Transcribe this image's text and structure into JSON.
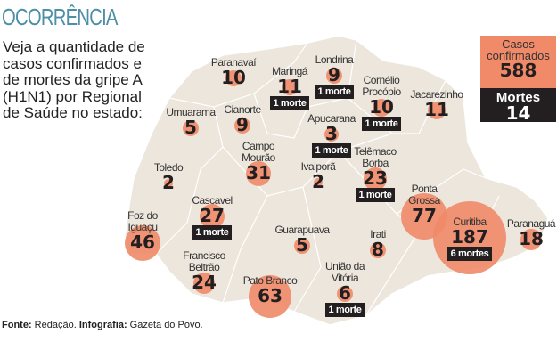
{
  "title": "OCORRÊNCIA",
  "intro": "Veja a quantidade de casos confirmados e de mortes da gripe A (H1N1) por Regional de Saúde no estado:",
  "summary": {
    "cases_label": "Casos confirmados",
    "cases": "588",
    "deaths_label": "Mortes",
    "deaths": "14"
  },
  "regions": [
    {
      "name": "Paranavaí",
      "cases": "10"
    },
    {
      "name": "Maringá",
      "cases": "11",
      "deaths": "1 morte"
    },
    {
      "name": "Londrina",
      "cases": "9",
      "deaths": "1 morte"
    },
    {
      "name": "Cornélio Procópio",
      "cases": "10",
      "deaths": "1 morte"
    },
    {
      "name": "Jacarezinho",
      "cases": "11"
    },
    {
      "name": "Umuarama",
      "cases": "5"
    },
    {
      "name": "Cianorte",
      "cases": "9"
    },
    {
      "name": "Apucarana",
      "cases": "3",
      "deaths": "1 morte"
    },
    {
      "name": "Campo Mourão",
      "cases": "31"
    },
    {
      "name": "Ivaiporã",
      "cases": "2"
    },
    {
      "name": "Telêmaco Borba",
      "cases": "23",
      "deaths": "1 morte"
    },
    {
      "name": "Toledo",
      "cases": "2"
    },
    {
      "name": "Ponta Grossa",
      "cases": "77"
    },
    {
      "name": "Curitiba",
      "cases": "187",
      "deaths": "6 mortes"
    },
    {
      "name": "Paranaguá",
      "cases": "18"
    },
    {
      "name": "Cascavel",
      "cases": "27",
      "deaths": "1 morte"
    },
    {
      "name": "Foz do Iguaçu",
      "cases": "46"
    },
    {
      "name": "Guarapuava",
      "cases": "5"
    },
    {
      "name": "Irati",
      "cases": "8"
    },
    {
      "name": "Francisco Beltrão",
      "cases": "24"
    },
    {
      "name": "Pato Branco",
      "cases": "63"
    },
    {
      "name": "União da Vitória",
      "cases": "6",
      "deaths": "1 morte"
    }
  ],
  "footer": {
    "source_label": "Fonte:",
    "source": "Redação.",
    "infographic_label": "Infografia:",
    "infographic": "Gazeta do Povo."
  },
  "colors": {
    "bubble": "#f08a68",
    "map": "#ece6dc",
    "dark": "#231f20",
    "title": "#4d8fa6"
  }
}
